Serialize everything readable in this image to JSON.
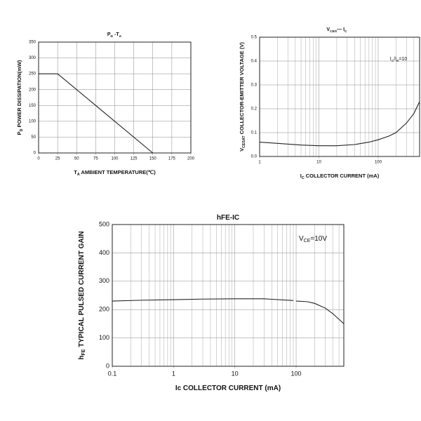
{
  "chart_data": [
    {
      "type": "line",
      "title": [
        "P",
        "D",
        " -T",
        "A"
      ],
      "xlabel": [
        "T",
        "A",
        "  AMBIENT TEMPERATURE(℃)"
      ],
      "ylabel": [
        "P",
        "D",
        " POWER DISSIPATION(mW)"
      ],
      "xlim": [
        0,
        200
      ],
      "xticks": [
        0,
        25,
        50,
        75,
        100,
        125,
        150,
        175,
        200
      ],
      "ylim": [
        0,
        350
      ],
      "yticks": [
        0,
        50,
        100,
        150,
        200,
        250,
        300,
        350
      ],
      "grid": true,
      "xscale": "linear",
      "series": [
        {
          "color": "#222222",
          "x": [
            0,
            25,
            150
          ],
          "values": [
            250,
            250,
            0
          ]
        }
      ]
    },
    {
      "type": "line",
      "title": [
        "V",
        "CES",
        "— I",
        "C"
      ],
      "xlabel": [
        "I",
        "C",
        "  COLLECTOR CURRENT  (mA)"
      ],
      "ylabel": [
        "V",
        "CESAT",
        " COLLECTOR-EMITTER VOLTAGE (V)"
      ],
      "annotation": [
        "I",
        "C",
        "/I",
        "B",
        "=10"
      ],
      "xlim": [
        1,
        500
      ],
      "xticks": [
        1,
        10,
        100
      ],
      "ylim": [
        0,
        0.5
      ],
      "yticks": [
        {
          "value": 0,
          "label": "0.0"
        },
        0.1,
        0.2,
        0.3,
        0.4,
        0.5
      ],
      "grid": true,
      "xscale": "log",
      "series": [
        {
          "color": "#222222",
          "x": [
            1,
            2,
            5,
            10,
            20,
            40,
            70,
            100,
            150,
            200,
            300,
            400,
            500
          ],
          "values": [
            0.06,
            0.055,
            0.048,
            0.045,
            0.045,
            0.05,
            0.06,
            0.07,
            0.085,
            0.1,
            0.14,
            0.18,
            0.23
          ]
        }
      ]
    },
    {
      "type": "line",
      "title": [
        "hFE-IC"
      ],
      "xlabel": [
        "Ic  COLLECTOR CURRENT  (mA)"
      ],
      "ylabel": [
        "h",
        "FE",
        " TYPICAL PULSED CURRENT GAIN"
      ],
      "annotation": [
        "V",
        "CE",
        "=10V"
      ],
      "xlim": [
        0.1,
        600
      ],
      "xticks": [
        0.1,
        1,
        10,
        100
      ],
      "ylim": [
        0,
        500
      ],
      "yticks": [
        0,
        100,
        200,
        300,
        400,
        500
      ],
      "grid": true,
      "xscale": "log",
      "series": [
        {
          "color": "#222222",
          "x": [
            0.1,
            0.3,
            1,
            3,
            10,
            30,
            90,
            95,
            100,
            150,
            200,
            300,
            400,
            600
          ],
          "values": [
            230,
            233,
            235,
            237,
            238,
            238,
            232,
            null,
            230,
            228,
            222,
            205,
            185,
            150
          ]
        }
      ]
    }
  ]
}
